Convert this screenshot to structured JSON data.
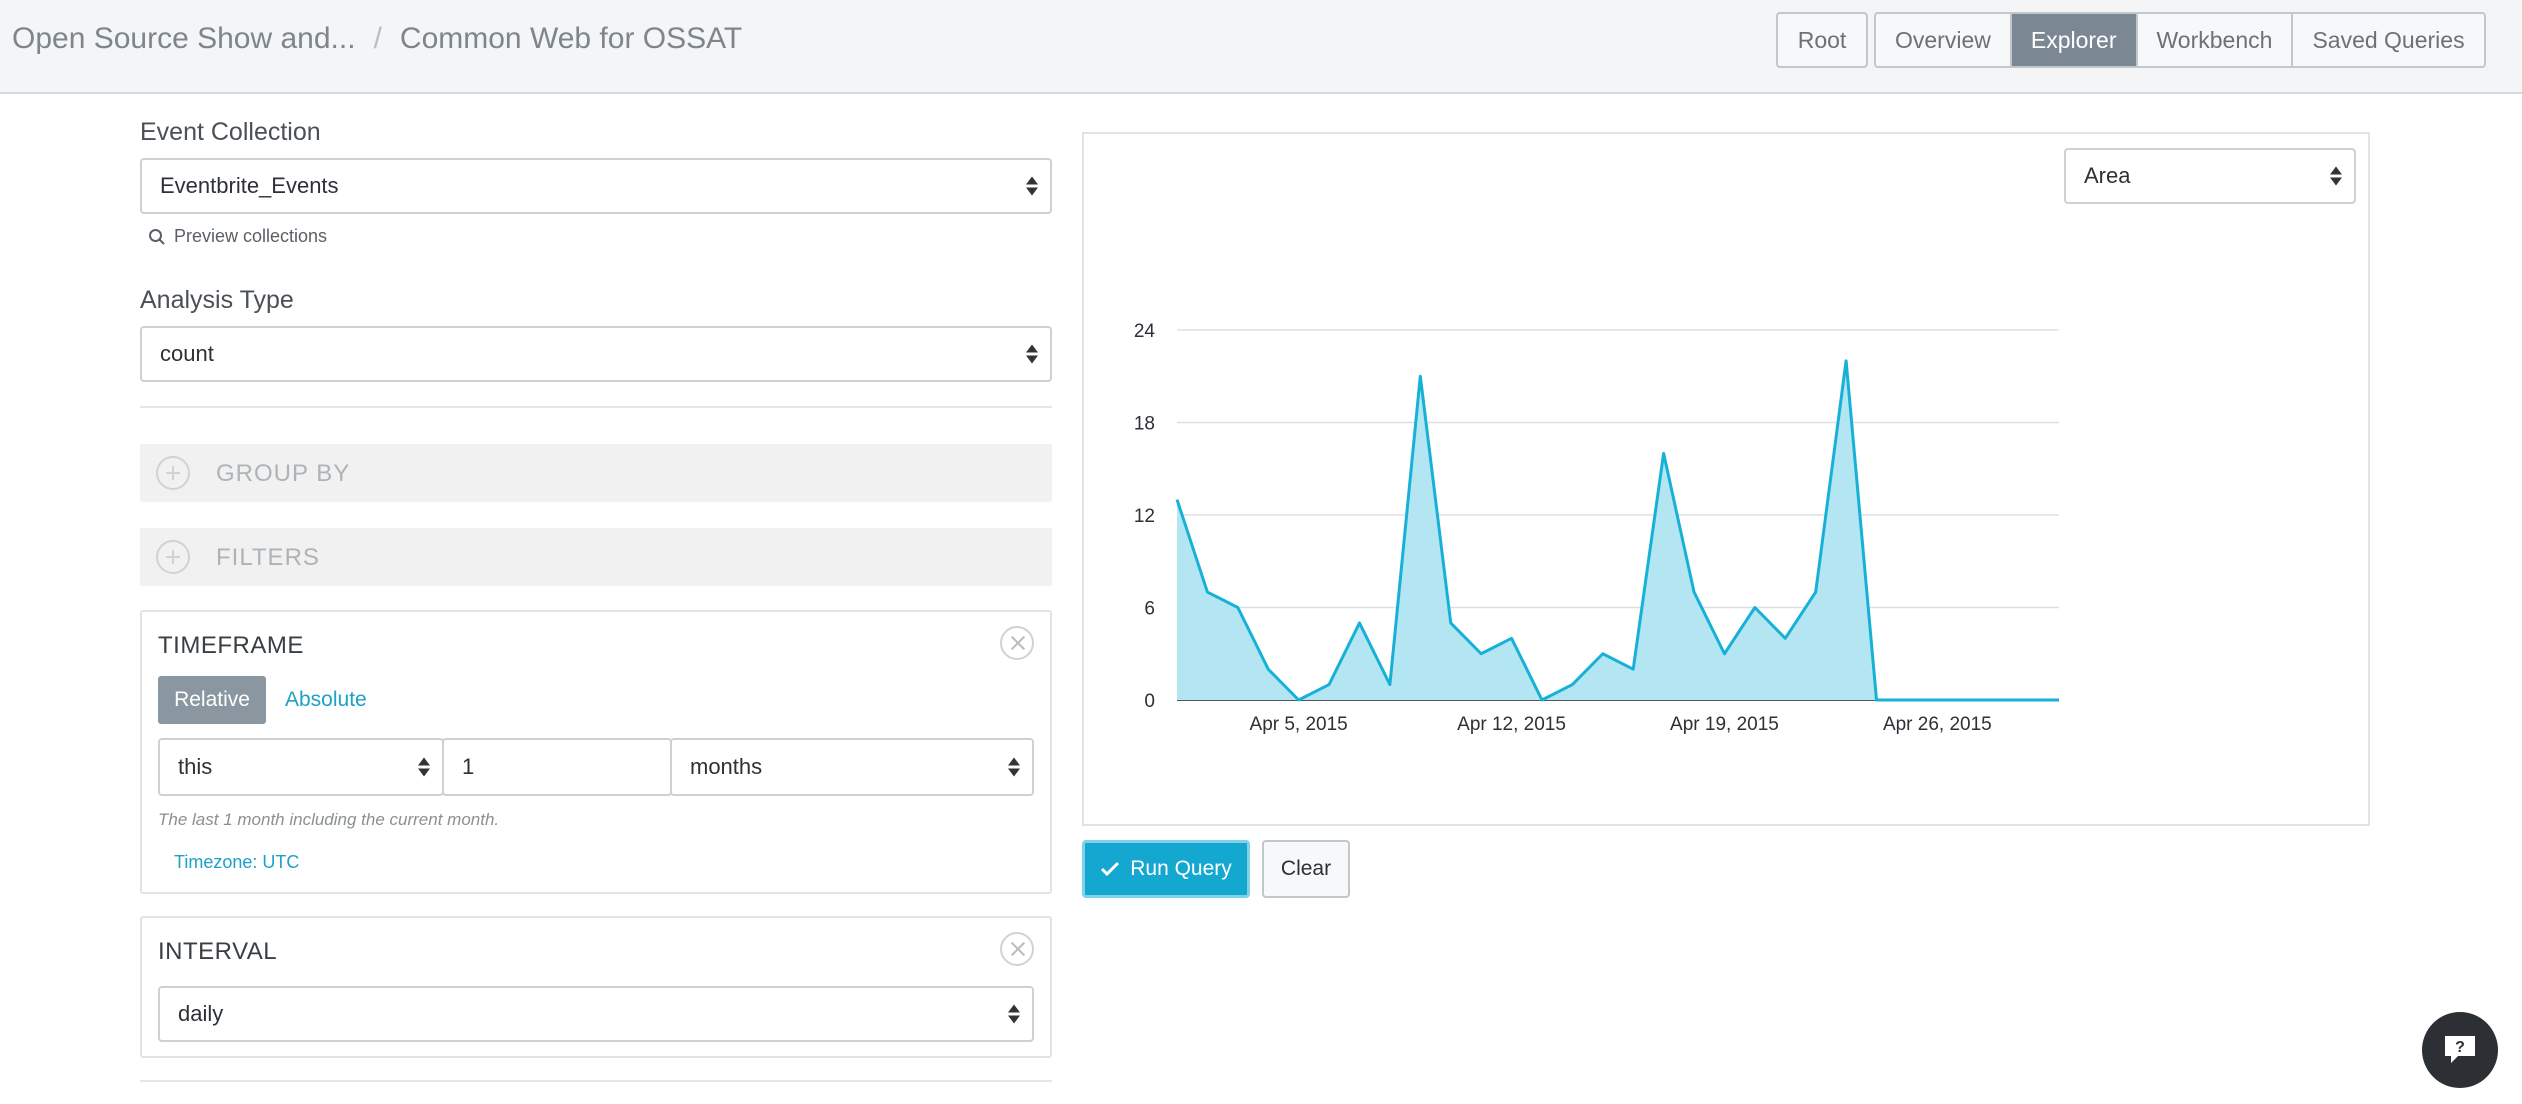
{
  "header": {
    "breadcrumb": [
      "Open Source Show and...",
      "Common Web for OSSAT"
    ],
    "separator": "/",
    "nav_root": "Root",
    "tabs": [
      "Overview",
      "Explorer",
      "Workbench",
      "Saved Queries"
    ],
    "active_tab": "Explorer"
  },
  "query": {
    "event_collection_label": "Event Collection",
    "event_collection_value": "Eventbrite_Events",
    "preview_label": "Preview collections",
    "analysis_type_label": "Analysis Type",
    "analysis_type_value": "count",
    "group_by_label": "GROUP BY",
    "filters_label": "FILTERS"
  },
  "timeframe": {
    "title": "TIMEFRAME",
    "relative_label": "Relative",
    "absolute_label": "Absolute",
    "relativity": "this",
    "amount": "1",
    "units": "months",
    "hint": "The last 1 month including the current month.",
    "timezone": "Timezone: UTC"
  },
  "interval": {
    "title": "INTERVAL",
    "value": "daily"
  },
  "chart_type_select": "Area",
  "actions": {
    "run_label": "Run Query",
    "clear_label": "Clear"
  },
  "colors": {
    "accent": "#14a8d0",
    "series_stroke": "#17b1d8",
    "series_fill": "#b3e6f2",
    "active_tab": "#7b8894"
  },
  "chart_data": {
    "type": "area",
    "x_start": "Apr 1, 2015",
    "x_end": "Apr 30, 2015",
    "xticks": [
      "Apr 5, 2015",
      "Apr 12, 2015",
      "Apr 19, 2015",
      "Apr 26, 2015"
    ],
    "yticks": [
      0,
      6,
      12,
      18,
      24
    ],
    "ylim": [
      0,
      24
    ],
    "grid": true,
    "series": [
      {
        "values": [
          13,
          7,
          6,
          2,
          0,
          1,
          5,
          1,
          21,
          5,
          3,
          4,
          0,
          1,
          3,
          2,
          16,
          7,
          3,
          6,
          4,
          7,
          22,
          0,
          0,
          0,
          0,
          0,
          0,
          0
        ]
      }
    ]
  }
}
